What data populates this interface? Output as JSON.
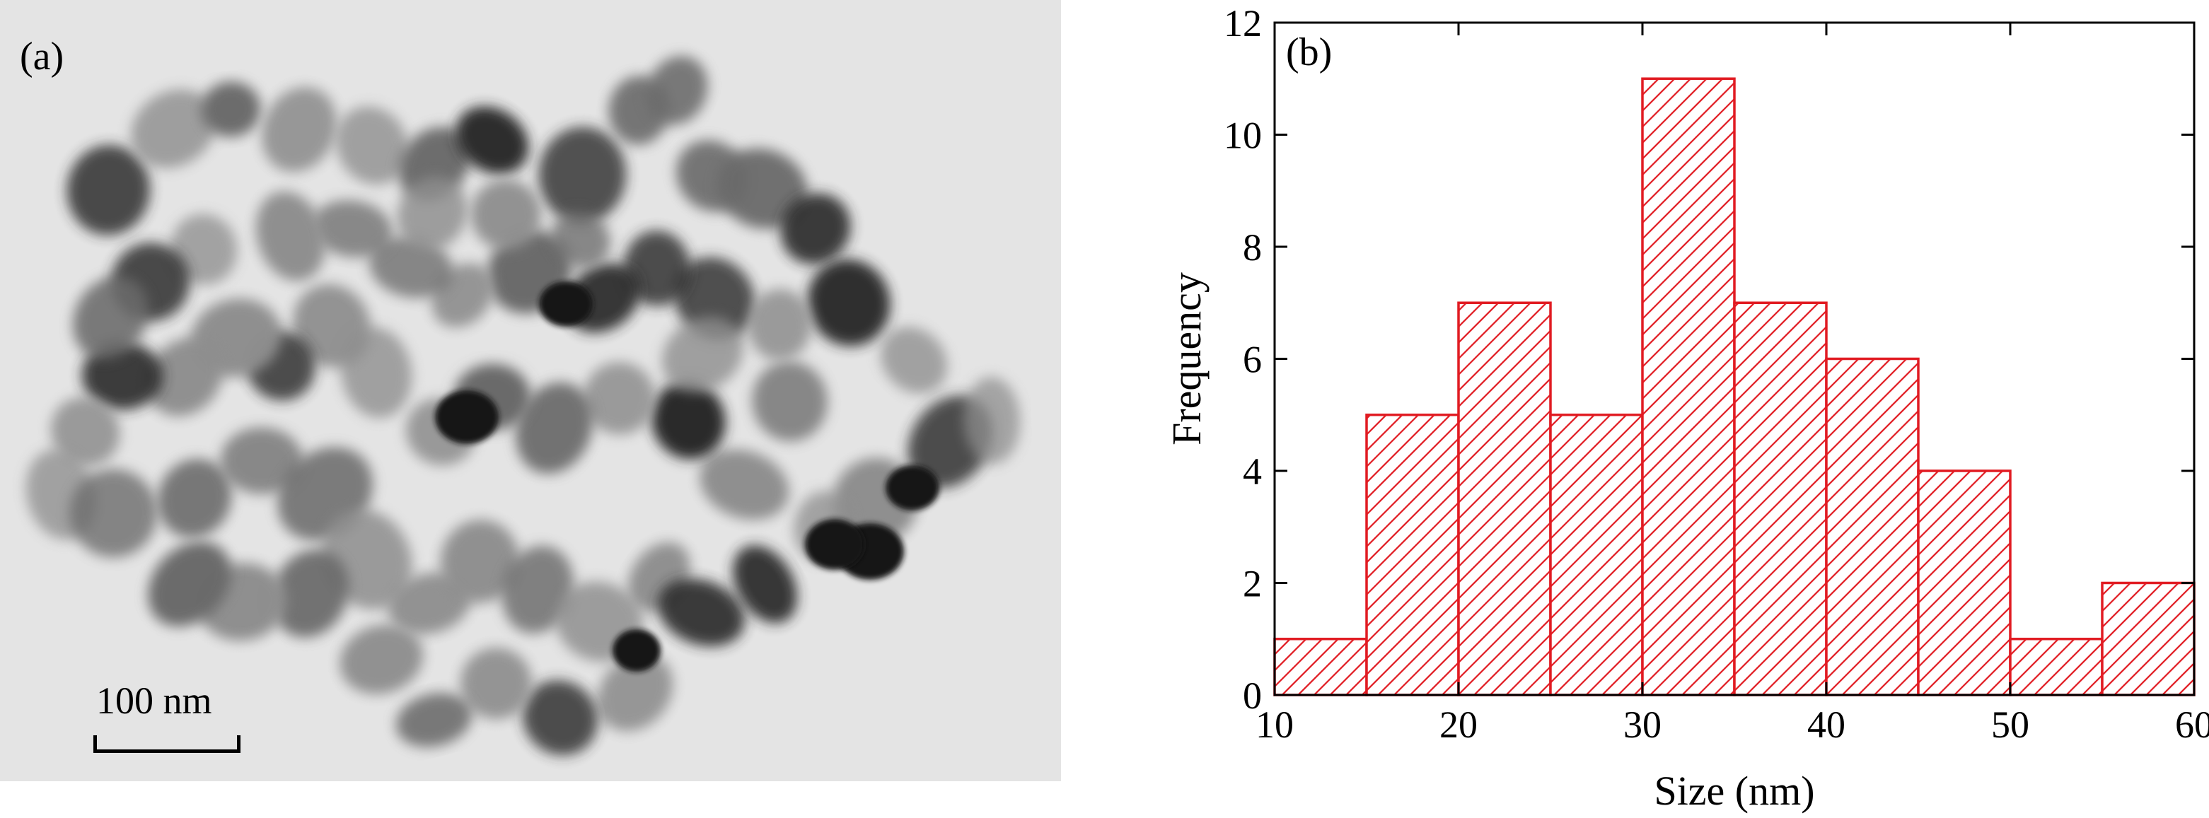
{
  "panel_a": {
    "label": "(a)",
    "scale_bar_label": "100 nm"
  },
  "panel_b": {
    "label": "(b)"
  },
  "colors": {
    "bar_stroke": "#e11b22",
    "hatch": "#e11b22",
    "axis": "#000000",
    "tem_background": "#e4e4e4",
    "particle_dark": "#2a2a2a",
    "particle_light": "#8a8a8a"
  },
  "chart_data": {
    "type": "bar",
    "title": "",
    "xlabel": "Size (nm)",
    "ylabel": "Frequency",
    "bin_edges": [
      10,
      15,
      20,
      25,
      30,
      35,
      40,
      45,
      50,
      55,
      60
    ],
    "values": [
      1,
      5,
      7,
      5,
      11,
      7,
      6,
      4,
      1,
      2
    ],
    "xlim": [
      10,
      60
    ],
    "ylim": [
      0,
      12
    ],
    "xticks": [
      10,
      20,
      30,
      40,
      50,
      60
    ],
    "yticks": [
      0,
      2,
      4,
      6,
      8,
      10,
      12
    ],
    "bar_fill": "diagonal hatch",
    "grid": false,
    "legend": "none"
  }
}
